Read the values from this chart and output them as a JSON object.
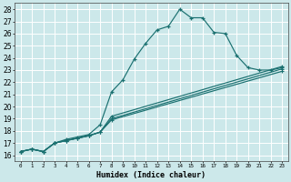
{
  "title": "",
  "xlabel": "Humidex (Indice chaleur)",
  "bg_color": "#cce8ea",
  "grid_color": "#ffffff",
  "line_color": "#1a7070",
  "xlim": [
    -0.5,
    23.5
  ],
  "ylim": [
    15.5,
    28.5
  ],
  "xticks": [
    0,
    1,
    2,
    3,
    4,
    5,
    6,
    7,
    8,
    9,
    10,
    11,
    12,
    13,
    14,
    15,
    16,
    17,
    18,
    19,
    20,
    21,
    22,
    23
  ],
  "yticks": [
    16,
    17,
    18,
    19,
    20,
    21,
    22,
    23,
    24,
    25,
    26,
    27,
    28
  ],
  "line1_x": [
    0,
    1,
    2,
    3,
    4,
    5,
    6,
    7,
    8,
    9,
    10,
    11,
    12,
    13,
    14,
    15,
    16,
    17,
    18,
    19,
    20,
    21,
    22,
    23
  ],
  "line1_y": [
    16.3,
    16.5,
    16.3,
    17.0,
    17.3,
    17.5,
    17.7,
    18.5,
    21.2,
    22.2,
    23.9,
    25.2,
    26.3,
    26.6,
    28.0,
    27.3,
    27.3,
    26.1,
    26.0,
    24.2,
    23.2,
    23.0,
    23.0,
    23.2
  ],
  "line2_x": [
    0,
    1,
    2,
    3,
    4,
    5,
    6,
    7,
    8,
    23
  ],
  "line2_y": [
    16.3,
    16.5,
    16.3,
    17.0,
    17.2,
    17.4,
    17.6,
    17.9,
    18.9,
    22.9
  ],
  "line3_x": [
    0,
    1,
    2,
    3,
    4,
    5,
    6,
    7,
    8,
    23
  ],
  "line3_y": [
    16.3,
    16.5,
    16.3,
    17.0,
    17.2,
    17.4,
    17.6,
    17.9,
    19.0,
    23.1
  ],
  "line4_x": [
    0,
    1,
    2,
    3,
    4,
    5,
    6,
    7,
    8,
    23
  ],
  "line4_y": [
    16.3,
    16.5,
    16.3,
    17.0,
    17.2,
    17.4,
    17.6,
    17.9,
    19.2,
    23.3
  ]
}
